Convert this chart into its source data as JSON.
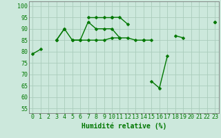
{
  "x": [
    0,
    1,
    2,
    3,
    4,
    5,
    6,
    7,
    8,
    9,
    10,
    11,
    12,
    13,
    14,
    15,
    16,
    17,
    18,
    19,
    20,
    21,
    22,
    23
  ],
  "line1": [
    79,
    81,
    null,
    null,
    null,
    null,
    null,
    null,
    null,
    null,
    95,
    95,
    92,
    null,
    null,
    67,
    64,
    78,
    null,
    null,
    null,
    null,
    null,
    93
  ],
  "line2": [
    null,
    null,
    null,
    85,
    90,
    null,
    null,
    95,
    95,
    95,
    95,
    null,
    null,
    null,
    null,
    null,
    null,
    null,
    null,
    null,
    null,
    null,
    null,
    null
  ],
  "line3": [
    null,
    null,
    null,
    85,
    90,
    85,
    85,
    93,
    90,
    90,
    90,
    86,
    null,
    null,
    85,
    null,
    null,
    null,
    87,
    86,
    null,
    null,
    null,
    93
  ],
  "line4": [
    null,
    null,
    null,
    null,
    null,
    85,
    85,
    85,
    85,
    85,
    86,
    86,
    86,
    85,
    85,
    85,
    null,
    null,
    null,
    null,
    null,
    null,
    null,
    null
  ],
  "bg_color": "#cce8dc",
  "grid_color": "#aaccbb",
  "line_color": "#007700",
  "xlabel": "Humidité relative (%)",
  "ylabel_ticks": [
    55,
    60,
    65,
    70,
    75,
    80,
    85,
    90,
    95,
    100
  ],
  "ylim": [
    53,
    102
  ],
  "xlim": [
    -0.5,
    23.5
  ],
  "xlabel_fontsize": 7,
  "tick_fontsize": 6,
  "marker": "D",
  "markersize": 2.5,
  "linewidth": 1.0
}
